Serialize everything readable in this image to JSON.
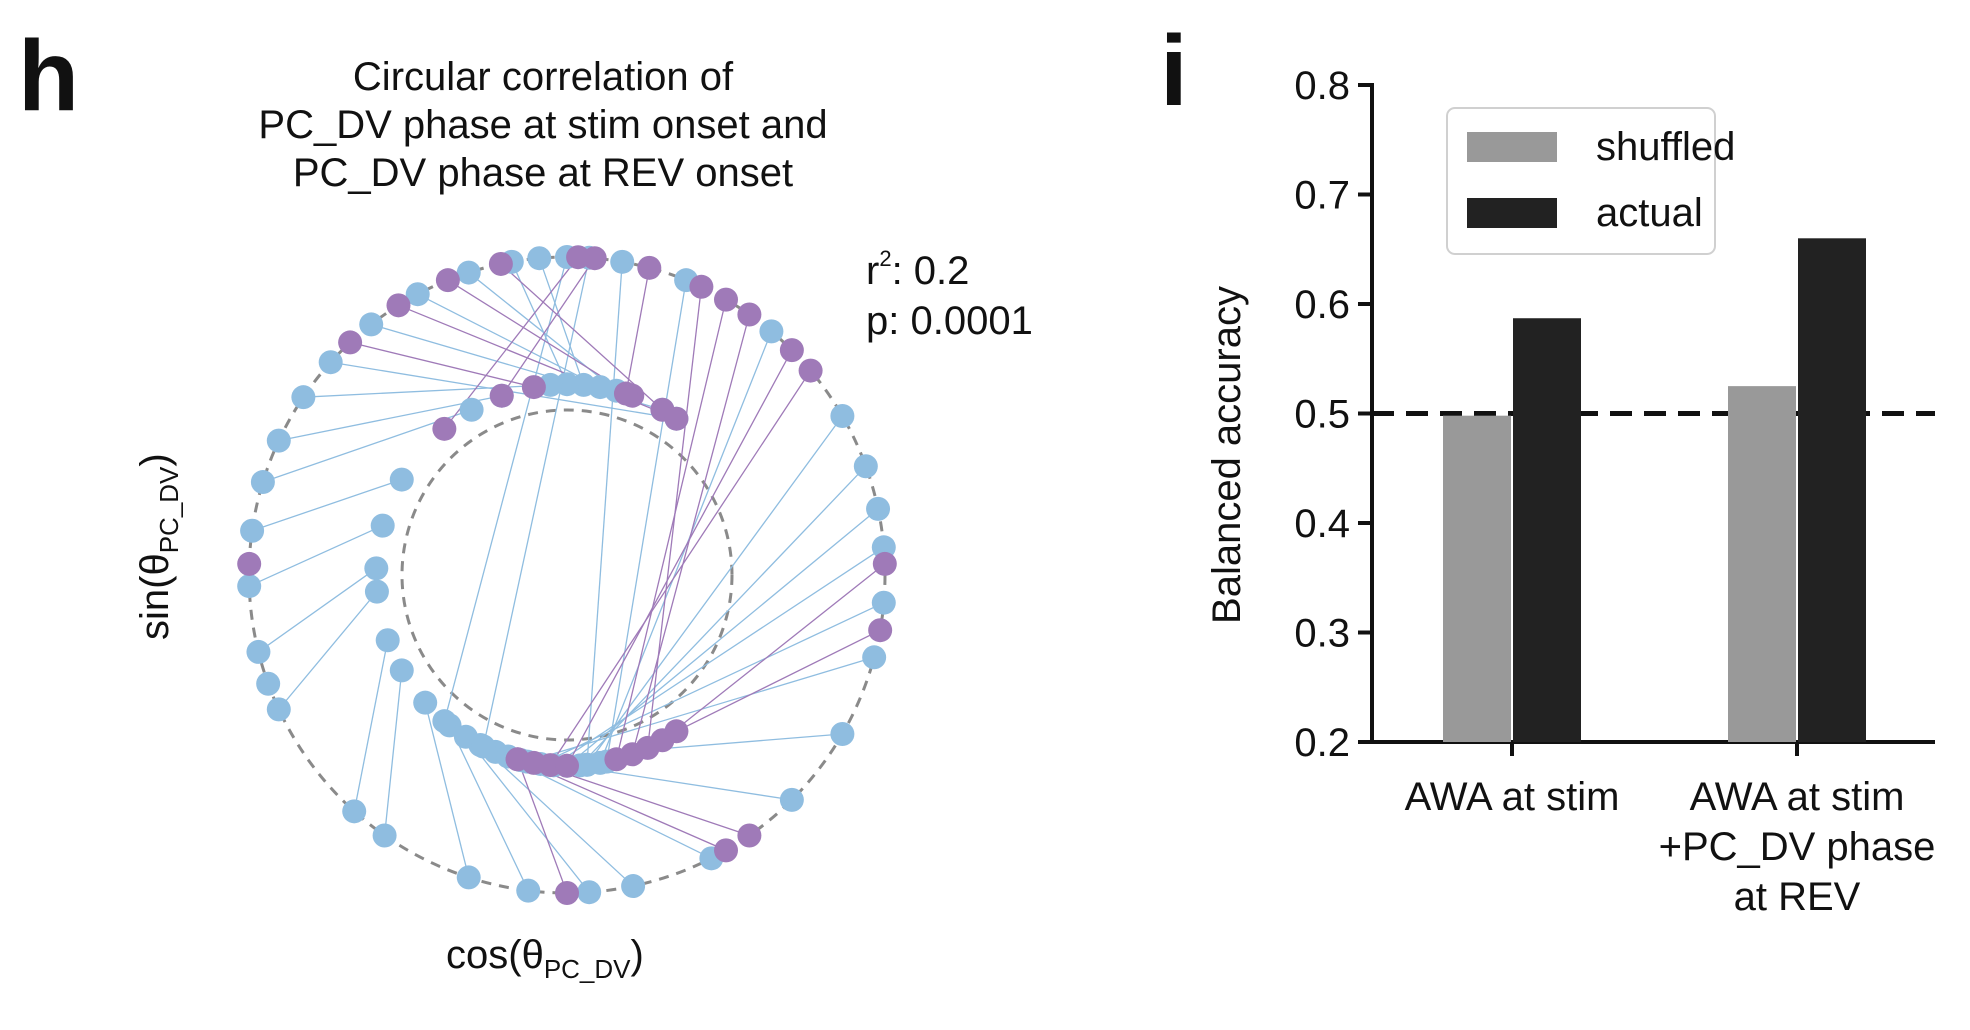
{
  "panels": {
    "h": {
      "letter": "h",
      "title_lines": [
        "Circular correlation of",
        "PC_DV phase at stim onset and",
        "PC_DV phase at REV onset"
      ],
      "stats": {
        "r2_label": "r",
        "r2_sup": "2",
        "r2_text": ": 0.2",
        "p_text": "p: 0.0001"
      },
      "xlabel": {
        "main": "cos(θ",
        "sub": "PC_DV",
        "close": ")"
      },
      "ylabel": {
        "main": "sin(θ",
        "sub": "PC_DV",
        "close": ")"
      }
    },
    "i": {
      "letter": "i"
    }
  },
  "colors": {
    "blue": "#8fbde0",
    "purple": "#9f7ab8",
    "shuffled": "#999999",
    "actual": "#222222",
    "dashed_circle": "#8a8a8a",
    "axis": "#111111"
  },
  "chart_data": [
    {
      "type": "scatter",
      "panel": "h",
      "description_free": true,
      "outer_radius": 1.0,
      "inner_radius": 0.6,
      "r2": 0.2,
      "p": 0.0001,
      "series": [
        {
          "name": "",
          "color_key": "blue",
          "pairs_deg": [
            [
              95,
              85
            ],
            [
              100,
              90
            ],
            [
              108,
              75
            ],
            [
              118,
              80
            ],
            [
              128,
              60
            ],
            [
              138,
              55
            ],
            [
              146,
              95
            ],
            [
              155,
              110
            ],
            [
              163,
              120
            ],
            [
              172,
              150
            ],
            [
              182,
              165
            ],
            [
              194,
              178
            ],
            [
              205,
              185
            ],
            [
              228,
              200
            ],
            [
              235,
              210
            ],
            [
              252,
              222
            ],
            [
              263,
              232
            ],
            [
              274,
              238
            ],
            [
              282,
              243
            ],
            [
              297,
              248
            ],
            [
              315,
              252
            ],
            [
              330,
              256
            ],
            [
              345,
              258
            ],
            [
              355,
              262
            ],
            [
              5,
              266
            ],
            [
              12,
              270
            ],
            [
              20,
              274
            ],
            [
              30,
              276
            ],
            [
              50,
              280
            ],
            [
              68,
              282
            ],
            [
              80,
              276
            ],
            [
              86,
              244
            ],
            [
              90,
              230
            ]
          ]
        },
        {
          "name": "",
          "color_key": "purple",
          "pairs_deg": [
            [
              102,
              60
            ],
            [
              112,
              70
            ],
            [
              122,
              55
            ],
            [
              133,
              100
            ],
            [
              270,
              255
            ],
            [
              300,
              255
            ],
            [
              305,
              260
            ],
            [
              40,
              265
            ],
            [
              45,
              270
            ],
            [
              55,
              290
            ],
            [
              60,
              285
            ],
            [
              65,
              295
            ],
            [
              2,
              300
            ],
            [
              350,
              305
            ],
            [
              85,
              110
            ],
            [
              88,
              130
            ],
            [
              75,
              72
            ]
          ]
        }
      ],
      "extra_points": [
        {
          "color_key": "purple",
          "angle_deg": 178,
          "radius": 1.0
        },
        {
          "color_key": "blue",
          "angle_deg": 200,
          "radius": 1.0
        }
      ]
    },
    {
      "type": "bar",
      "panel": "i",
      "categories": [
        [
          "AWA at stim"
        ],
        [
          "AWA at stim",
          "+PC_DV phase",
          "at REV"
        ]
      ],
      "series": [
        {
          "name": "shuffled",
          "color_key": "shuffled",
          "values": [
            0.498,
            0.525
          ]
        },
        {
          "name": "actual",
          "color_key": "actual",
          "values": [
            0.587,
            0.66
          ]
        }
      ],
      "ylabel": "Balanced accuracy",
      "ylim": [
        0.2,
        0.8
      ],
      "yticks": [
        "0.2",
        "0.3",
        "0.4",
        "0.5",
        "0.6",
        "0.7",
        "0.8"
      ],
      "reference_line": 0.5,
      "legend_position": "top-center"
    }
  ]
}
